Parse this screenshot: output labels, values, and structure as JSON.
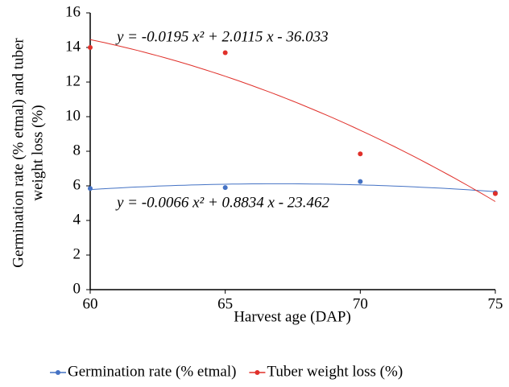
{
  "chart_data": {
    "type": "scatter",
    "x_label": "Harvest age (DAP)",
    "y_label_lines": [
      "Germination rate (% etmal) and tuber",
      "weight loss (%)"
    ],
    "x": [
      60,
      65,
      70,
      75
    ],
    "xlim": [
      60,
      75
    ],
    "xticks": [
      60,
      65,
      70,
      75
    ],
    "ylim": [
      0,
      16
    ],
    "yticks": [
      0,
      2,
      4,
      6,
      8,
      10,
      12,
      14,
      16
    ],
    "grid": false,
    "legend": "bottom",
    "trendline": "polynomial-2",
    "series": [
      {
        "name": "Germination rate (% etmal)",
        "color": "#4472c4",
        "values": [
          5.85,
          5.9,
          6.25,
          5.6
        ],
        "equation": "y = -0.0066 x² + 0.8834 x - 23.462"
      },
      {
        "name": "Tuber weight loss (%)",
        "color": "#e0302a",
        "values": [
          14.0,
          13.7,
          7.85,
          5.55
        ],
        "equation": "y = -0.0195 x² + 2.0115 x - 36.033"
      }
    ]
  }
}
